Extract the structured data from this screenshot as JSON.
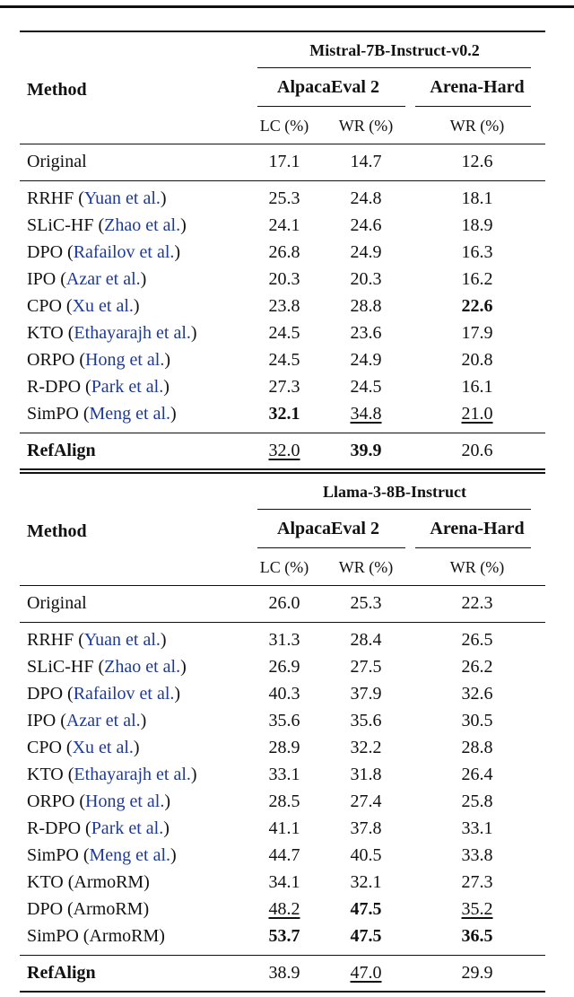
{
  "tables": [
    {
      "model": "Mistral-7B-Instruct-v0.2",
      "method_header": "Method",
      "groups": [
        "AlpacaEval 2",
        "Arena-Hard"
      ],
      "subheaders": [
        "LC (%)",
        "WR (%)",
        "WR (%)"
      ],
      "sections": [
        [
          {
            "method": "Original",
            "values": [
              "17.1",
              "14.7",
              "12.6"
            ]
          }
        ],
        [
          {
            "method": "RRHF",
            "cite": "(Yuan et al.)",
            "values": [
              "25.3",
              "24.8",
              "18.1"
            ]
          },
          {
            "method": "SLiC-HF",
            "cite": "(Zhao et al.)",
            "values": [
              "24.1",
              "24.6",
              "18.9"
            ]
          },
          {
            "method": "DPO",
            "cite": "(Rafailov et al.)",
            "values": [
              "26.8",
              "24.9",
              "16.3"
            ]
          },
          {
            "method": "IPO",
            "cite": "(Azar et al.)",
            "values": [
              "20.3",
              "20.3",
              "16.2"
            ]
          },
          {
            "method": "CPO",
            "cite": "(Xu et al.)",
            "values": [
              "23.8",
              "28.8",
              "22.6"
            ],
            "bold": [
              2
            ]
          },
          {
            "method": "KTO",
            "cite": "(Ethayarajh et al.)",
            "values": [
              "24.5",
              "23.6",
              "17.9"
            ]
          },
          {
            "method": "ORPO",
            "cite": "(Hong et al.)",
            "values": [
              "24.5",
              "24.9",
              "20.8"
            ]
          },
          {
            "method": "R-DPO",
            "cite": "(Park et al.)",
            "values": [
              "27.3",
              "24.5",
              "16.1"
            ]
          },
          {
            "method": "SimPO",
            "cite": "(Meng et al.)",
            "values": [
              "32.1",
              "34.8",
              "21.0"
            ],
            "bold": [
              0
            ],
            "underline": [
              1,
              2
            ]
          }
        ],
        [
          {
            "method": "RefAlign",
            "values": [
              "32.0",
              "39.9",
              "20.6"
            ],
            "bold_method": true,
            "bold": [
              1
            ],
            "underline": [
              0
            ]
          }
        ]
      ]
    },
    {
      "model": "Llama-3-8B-Instruct",
      "method_header": "Method",
      "groups": [
        "AlpacaEval 2",
        "Arena-Hard"
      ],
      "subheaders": [
        "LC (%)",
        "WR (%)",
        "WR (%)"
      ],
      "sections": [
        [
          {
            "method": "Original",
            "values": [
              "26.0",
              "25.3",
              "22.3"
            ]
          }
        ],
        [
          {
            "method": "RRHF",
            "cite": "(Yuan et al.)",
            "values": [
              "31.3",
              "28.4",
              "26.5"
            ]
          },
          {
            "method": "SLiC-HF",
            "cite": "(Zhao et al.)",
            "values": [
              "26.9",
              "27.5",
              "26.2"
            ]
          },
          {
            "method": "DPO",
            "cite": "(Rafailov et al.)",
            "values": [
              "40.3",
              "37.9",
              "32.6"
            ]
          },
          {
            "method": "IPO",
            "cite": "(Azar et al.)",
            "values": [
              "35.6",
              "35.6",
              "30.5"
            ]
          },
          {
            "method": "CPO",
            "cite": "(Xu et al.)",
            "values": [
              "28.9",
              "32.2",
              "28.8"
            ]
          },
          {
            "method": "KTO",
            "cite": "(Ethayarajh et al.)",
            "values": [
              "33.1",
              "31.8",
              "26.4"
            ]
          },
          {
            "method": "ORPO",
            "cite": "(Hong et al.)",
            "values": [
              "28.5",
              "27.4",
              "25.8"
            ]
          },
          {
            "method": "R-DPO",
            "cite": "(Park et al.)",
            "values": [
              "41.1",
              "37.8",
              "33.1"
            ]
          },
          {
            "method": "SimPO",
            "cite": "(Meng et al.)",
            "values": [
              "44.7",
              "40.5",
              "33.8"
            ]
          },
          {
            "method": "KTO (ArmoRM)",
            "values": [
              "34.1",
              "32.1",
              "27.3"
            ]
          },
          {
            "method": "DPO (ArmoRM)",
            "values": [
              "48.2",
              "47.5",
              "35.2"
            ],
            "bold": [
              1
            ],
            "underline": [
              0,
              2
            ]
          },
          {
            "method": "SimPO (ArmoRM)",
            "values": [
              "53.7",
              "47.5",
              "36.5"
            ],
            "bold": [
              0,
              1,
              2
            ]
          }
        ],
        [
          {
            "method": "RefAlign",
            "values": [
              "38.9",
              "47.0",
              "29.9"
            ],
            "bold_method": true,
            "underline": [
              1
            ]
          }
        ]
      ]
    }
  ]
}
